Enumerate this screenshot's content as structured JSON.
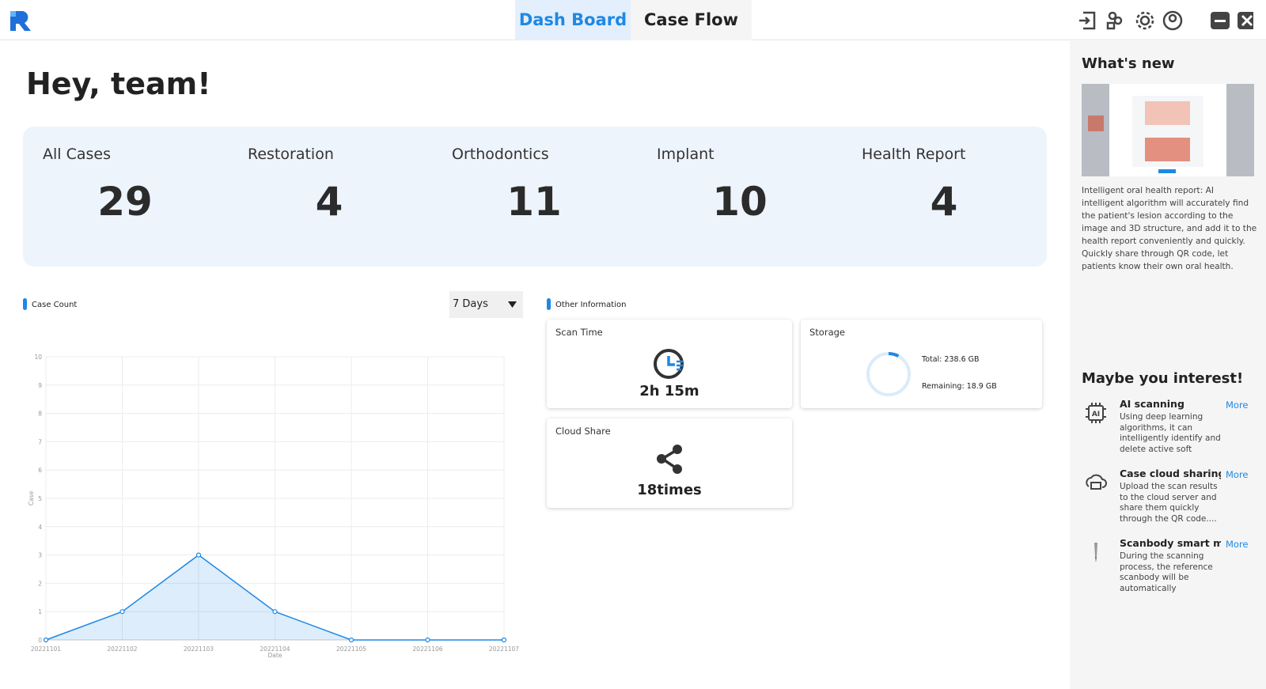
{
  "header": {
    "tabs": [
      "Dash Board",
      "Case Flow"
    ]
  },
  "greeting": "Hey, team!",
  "stats": [
    {
      "label": "All Cases",
      "value": 29
    },
    {
      "label": "Restoration",
      "value": 4
    },
    {
      "label": "Orthodontics",
      "value": 11
    },
    {
      "label": "Implant",
      "value": 10
    },
    {
      "label": "Health Report",
      "value": 4
    }
  ],
  "range_select": "7 Days",
  "chart_data": {
    "type": "line",
    "legend": "Case Count",
    "x_label": "Date",
    "y_label": "Case",
    "categories": [
      "20221101",
      "20221102",
      "20221103",
      "20221104",
      "20221105",
      "20221106",
      "20221107"
    ],
    "values": [
      0,
      1,
      3,
      1,
      0,
      0,
      0
    ],
    "color": "#1e88e5",
    "ylim": [
      0,
      10
    ],
    "yticks": [
      0,
      1,
      2,
      3,
      4,
      5,
      6,
      7,
      8,
      9,
      10
    ],
    "grid": true
  },
  "other_info": {
    "legend": "Other Information",
    "scan_time": {
      "title": "Scan Time",
      "value": "2h 15m"
    },
    "storage": {
      "title": "Storage",
      "total": {
        "label": "Total:",
        "value": 238.6,
        "value_label": "238.6 GB"
      },
      "remaining": {
        "label": "Remaining:",
        "value": 18.9,
        "value_label": "18.9 GB"
      }
    },
    "cloud_share": {
      "title": "Cloud Share",
      "value": "18times"
    }
  },
  "sidebar": {
    "whats_new": {
      "title": "What's new",
      "text": "Intelligent oral health report: AI intelligent algorithm will accurately find the patient's lesion according to the image and 3D structure, and add it to the health report conveniently and quickly. Quickly share through QR code, let patients know their own oral health."
    },
    "interest": {
      "title": "Maybe you interest!",
      "items": [
        {
          "title": "AI scanning",
          "text": "Using deep learning algorithms, it can intelligently identify and delete active soft tissue...",
          "more": "More"
        },
        {
          "title": "Case cloud sharing",
          "text": "Upload the scan results to the cloud server and share them quickly through the QR code....",
          "more": "More"
        },
        {
          "title": "Scanbody smart matc",
          "text": "During the scanning process, the reference scanbody will be automatically matched,...",
          "more": "More"
        }
      ]
    }
  }
}
